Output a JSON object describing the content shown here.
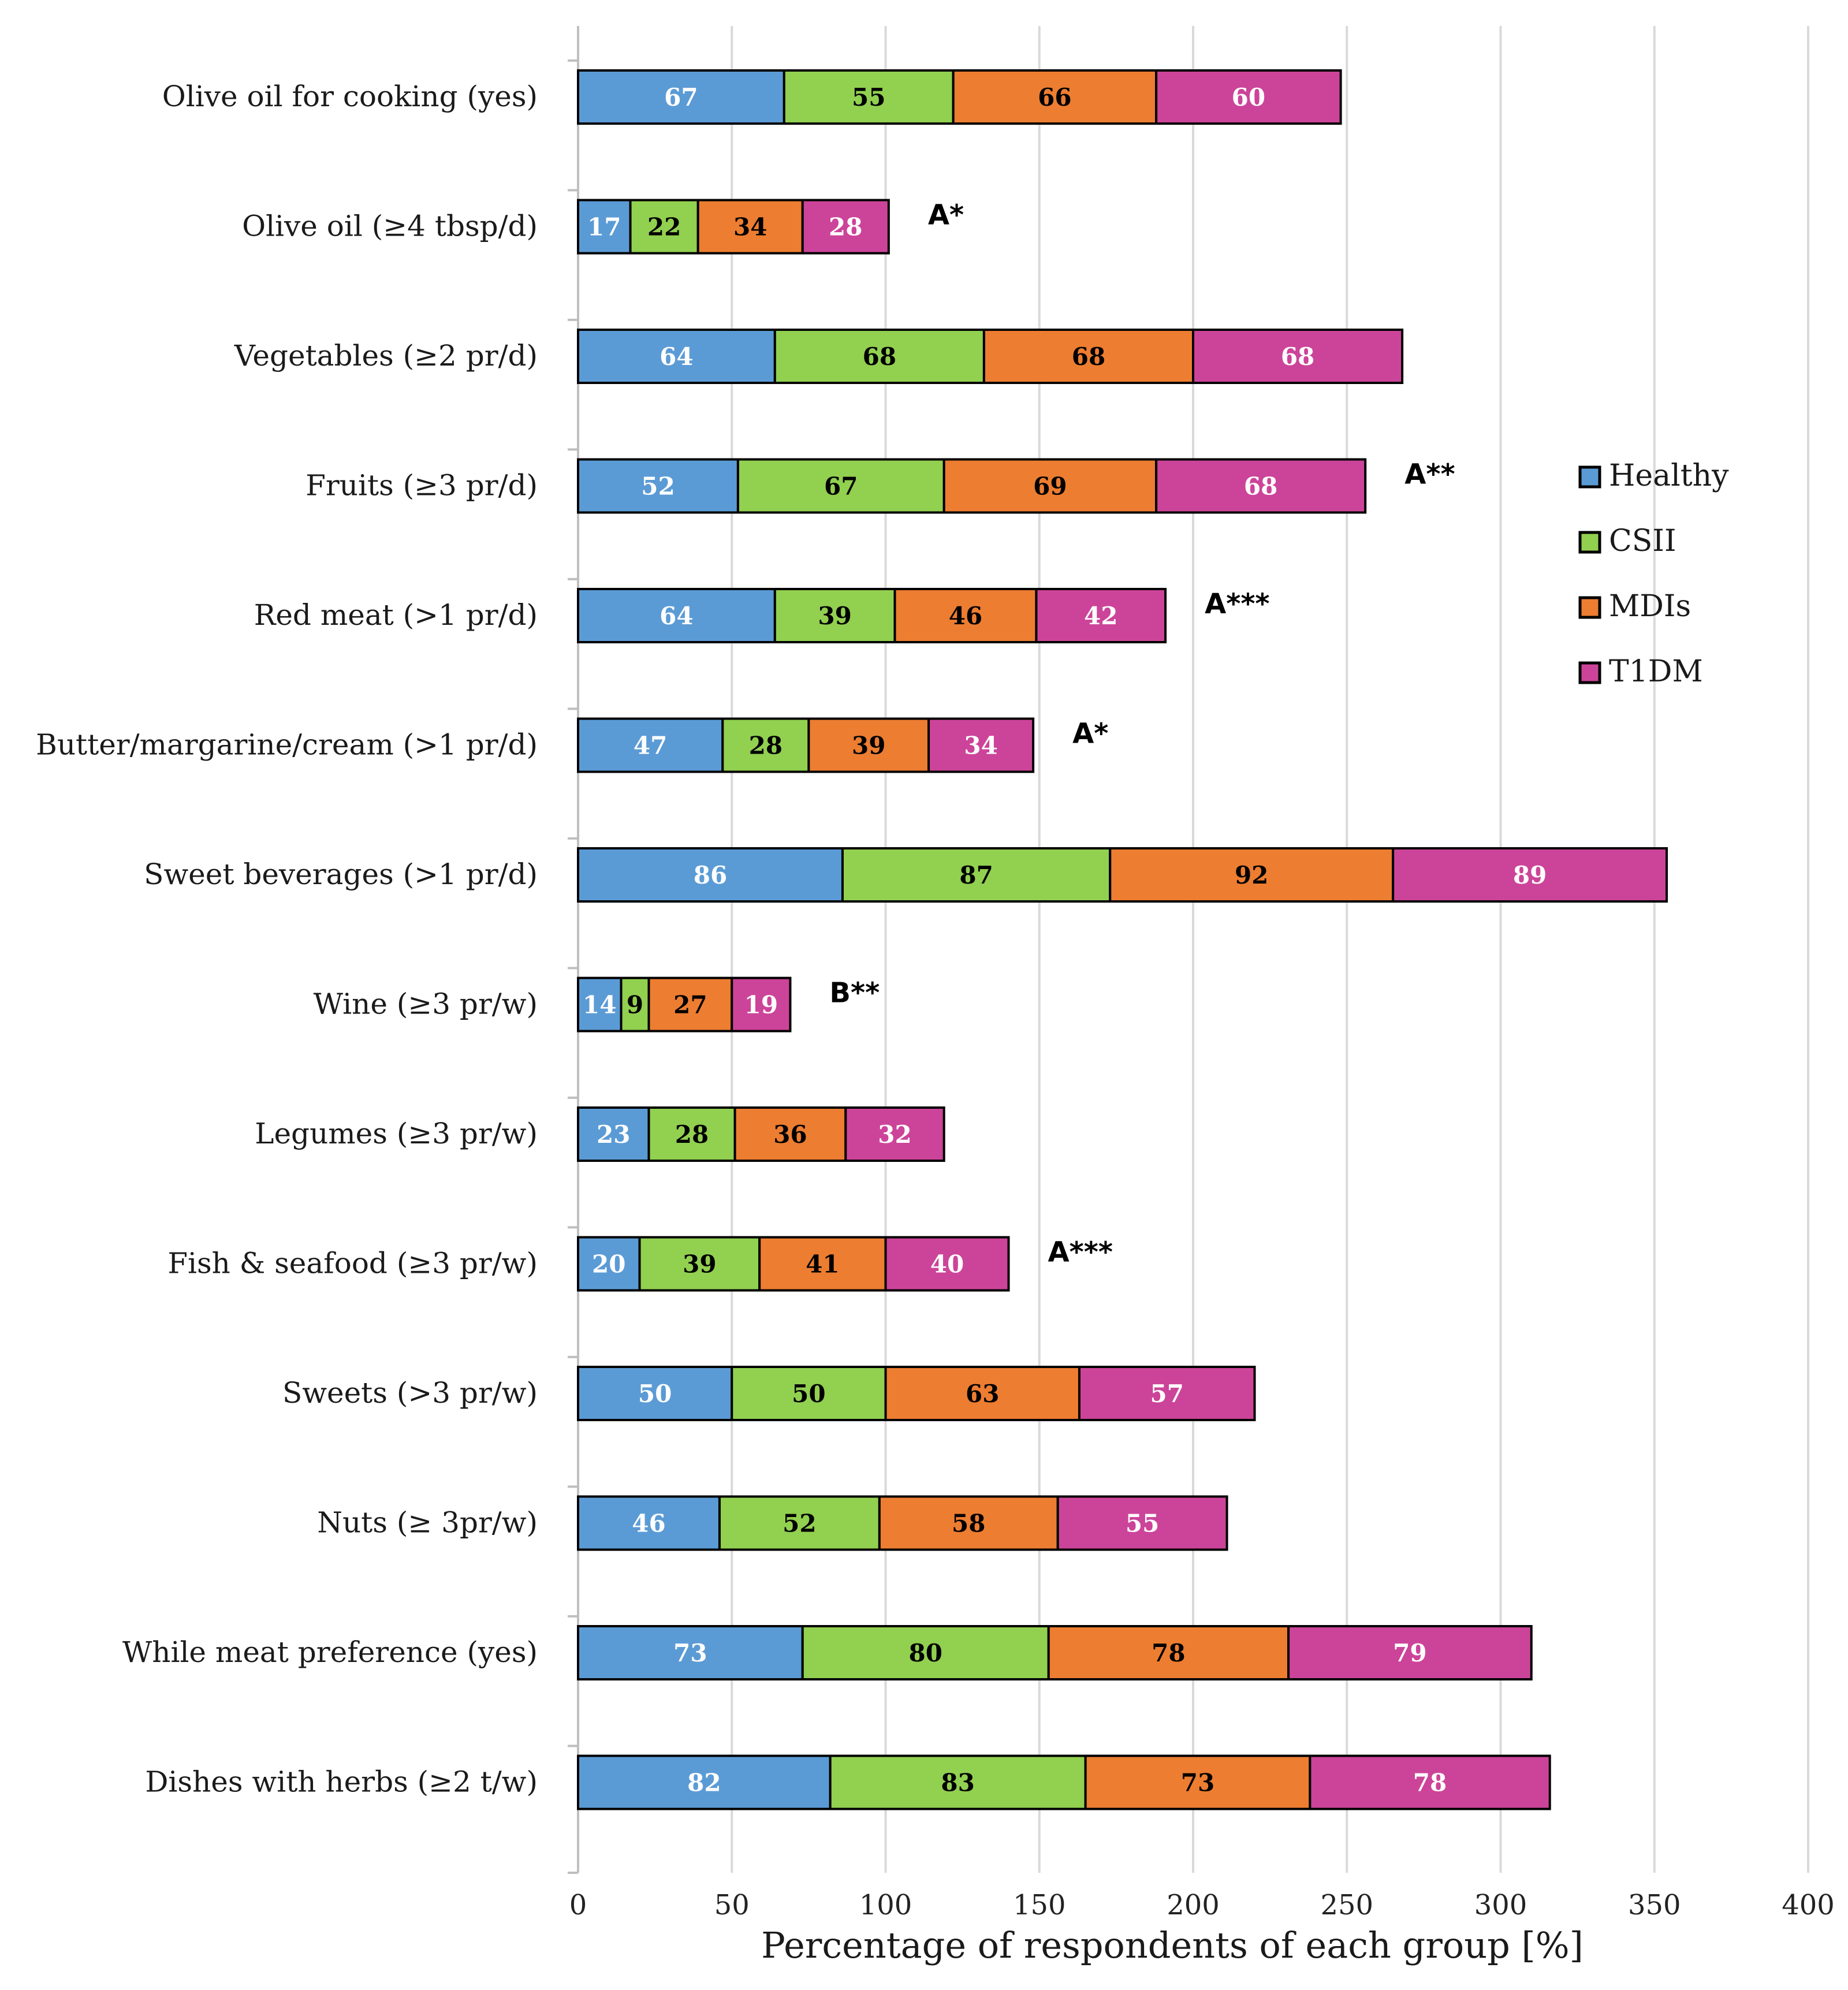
{
  "chart_data": {
    "type": "bar",
    "orientation": "horizontal",
    "stacked": true,
    "title": "",
    "xlabel": "Percentage of respondents of each group [%]",
    "ylabel": "",
    "xlim": [
      0,
      400
    ],
    "xticks": [
      0,
      50,
      100,
      150,
      200,
      250,
      300,
      350,
      400
    ],
    "grid": true,
    "legend_position": "right",
    "categories": [
      "Olive oil for cooking (yes)",
      "Olive oil (≥4 tbsp/d)",
      "Vegetables (≥2 pr/d)",
      "Fruits (≥3 pr/d)",
      "Red meat (>1 pr/d)",
      "Butter/margarine/cream (>1 pr/d)",
      "Sweet beverages (>1 pr/d)",
      "Wine (≥3 pr/w)",
      "Legumes (≥3 pr/w)",
      "Fish & seafood (≥3 pr/w)",
      "Sweets (>3 pr/w)",
      "Nuts (≥ 3pr/w)",
      "While meat preference (yes)",
      "Dishes with herbs (≥2 t/w)"
    ],
    "series": [
      {
        "name": "Healthy",
        "color": "#5b9bd5",
        "values": [
          67,
          17,
          64,
          52,
          64,
          47,
          86,
          14,
          23,
          20,
          50,
          46,
          73,
          82
        ]
      },
      {
        "name": "CSII",
        "color": "#92d050",
        "values": [
          55,
          22,
          68,
          67,
          39,
          28,
          87,
          9,
          28,
          39,
          50,
          52,
          80,
          83
        ]
      },
      {
        "name": "MDIs",
        "color": "#ed7d31",
        "values": [
          66,
          34,
          68,
          69,
          46,
          39,
          92,
          27,
          36,
          41,
          63,
          58,
          78,
          73
        ]
      },
      {
        "name": "T1DM",
        "color": "#cc4499",
        "values": [
          60,
          28,
          68,
          68,
          42,
          34,
          89,
          19,
          32,
          40,
          57,
          55,
          79,
          78
        ]
      }
    ],
    "label_colors": [
      "#ffffff",
      "#000000",
      "#000000",
      "#ffffff"
    ],
    "annotations": [
      "",
      "A*",
      "",
      "A**",
      "A***",
      "A*",
      "",
      "B**",
      "",
      "A***",
      "",
      "",
      "",
      ""
    ]
  }
}
